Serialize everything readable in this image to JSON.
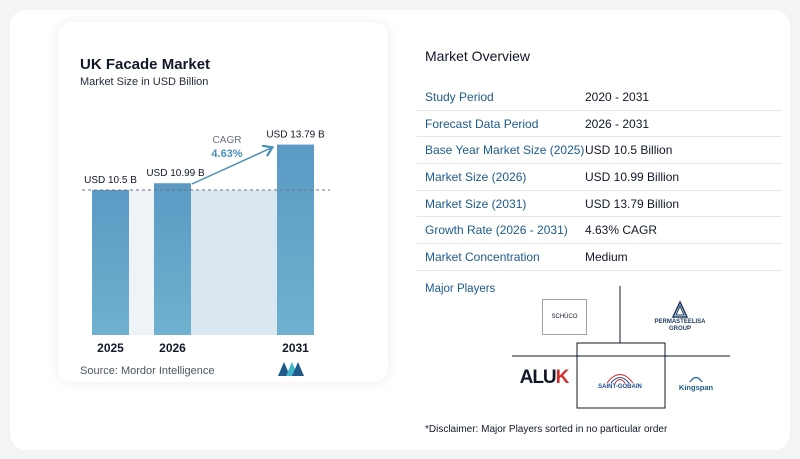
{
  "chart_data": {
    "type": "bar",
    "title": "UK Facade Market",
    "subtitle": "Market Size in USD Billion",
    "categories": [
      "2025",
      "2026",
      "2031"
    ],
    "values": [
      10.5,
      10.99,
      13.79
    ],
    "data_labels": [
      "USD 10.5 B",
      "USD 10.99 B",
      "USD 13.79 B"
    ],
    "cagr_label": "CAGR",
    "cagr_value": "4.63%",
    "bar_color": "#5b9ac4",
    "bar_color_top": "#6fb1cf",
    "highlight_color": "#dbe7f0",
    "source": "Source:  Mordor Intelligence"
  },
  "overview": {
    "title": "Market Overview",
    "rows": [
      {
        "label": "Study Period",
        "value": "2020 - 2031"
      },
      {
        "label": "Forecast Data Period",
        "value": "2026 - 2031"
      },
      {
        "label": "Base Year Market Size (2025)",
        "value": "USD 10.5 Billion"
      },
      {
        "label": "Market Size (2026)",
        "value": "USD 10.99 Billion"
      },
      {
        "label": "Market Size (2031)",
        "value": "USD 13.79 Billion"
      },
      {
        "label": "Growth Rate (2026 - 2031)",
        "value": "4.63% CAGR"
      },
      {
        "label": "Market Concentration",
        "value": "Medium"
      }
    ]
  },
  "players": {
    "title": "Major Players",
    "schuco": "SCHÜCO",
    "permasteelisa_1": "PERMASTEELISA",
    "permasteelisa_2": "GROUP",
    "aluk_1": "ALU",
    "aluk_2": "K",
    "saintgobain": "SAINT-GOBAIN",
    "kingspan": "Kingspan"
  },
  "disclaimer": "*Disclaimer: Major Players sorted in no particular order"
}
